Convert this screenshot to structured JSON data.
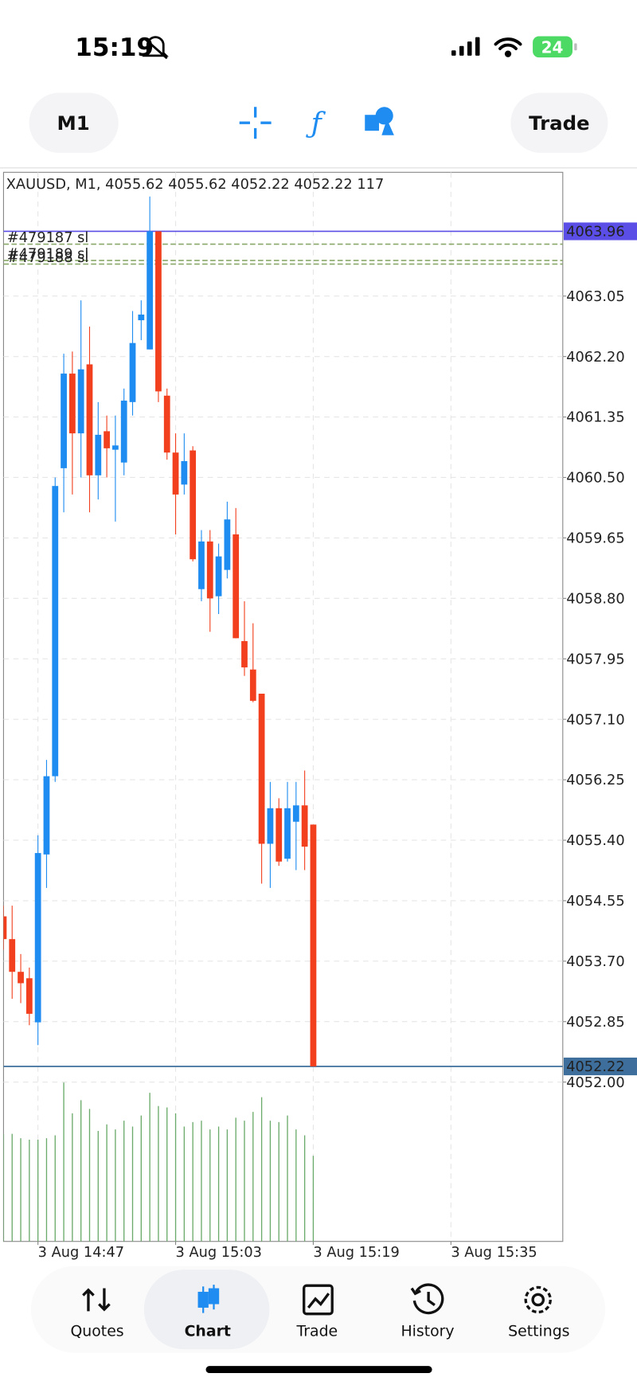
{
  "status_bar": {
    "time": "15:19",
    "battery": "24"
  },
  "toolbar": {
    "timeframe": "M1",
    "trade_button": "Trade"
  },
  "chart_data": {
    "type": "candlestick",
    "title": "XAUUSD, M1, 4055.62 4055.62 4052.22 4052.22 117",
    "x": [
      "3 Aug 14:43",
      "3 Aug 14:44",
      "3 Aug 14:45",
      "3 Aug 14:46",
      "3 Aug 14:47",
      "3 Aug 14:48",
      "3 Aug 14:49",
      "3 Aug 14:50",
      "3 Aug 14:51",
      "3 Aug 14:52",
      "3 Aug 14:53",
      "3 Aug 14:54",
      "3 Aug 14:55",
      "3 Aug 14:56",
      "3 Aug 14:57",
      "3 Aug 14:58",
      "3 Aug 14:59",
      "3 Aug 15:00",
      "3 Aug 15:01",
      "3 Aug 15:02",
      "3 Aug 15:03",
      "3 Aug 15:04",
      "3 Aug 15:05",
      "3 Aug 15:06",
      "3 Aug 15:07",
      "3 Aug 15:08",
      "3 Aug 15:09",
      "3 Aug 15:10",
      "3 Aug 15:11",
      "3 Aug 15:12",
      "3 Aug 15:13",
      "3 Aug 15:14",
      "3 Aug 15:15",
      "3 Aug 15:16",
      "3 Aug 15:17",
      "3 Aug 15:18",
      "3 Aug 15:19"
    ],
    "open": [
      4054.33,
      4054.01,
      4053.55,
      4053.46,
      4052.84,
      4055.2,
      4056.3,
      4060.63,
      4061.96,
      4061.12,
      4062.09,
      4060.53,
      4061.15,
      4060.89,
      4060.71,
      4061.56,
      4062.71,
      4062.3,
      4063.96,
      4061.65,
      4060.85,
      4060.4,
      4060.88,
      4058.93,
      4059.6,
      4058.83,
      4059.2,
      4059.7,
      4058.2,
      4057.8,
      4057.46,
      4055.35,
      4055.85,
      4055.14,
      4055.66,
      4055.89,
      4055.62
    ],
    "high": [
      4054.48,
      4054.48,
      4053.8,
      4053.61,
      4055.47,
      4056.53,
      4060.5,
      4062.24,
      4062.27,
      4062.99,
      4062.62,
      4061.56,
      4061.37,
      4061.37,
      4061.75,
      4062.84,
      4062.99,
      4064.45,
      4063.96,
      4061.75,
      4061.12,
      4061.12,
      4060.94,
      4059.76,
      4059.76,
      4059.57,
      4060.16,
      4060.07,
      4058.76,
      4058.45,
      4057.46,
      4056.22,
      4055.99,
      4056.22,
      4056.22,
      4056.38,
      4055.62
    ],
    "low": [
      4053.86,
      4053.17,
      4053.11,
      4052.8,
      4052.52,
      4054.73,
      4056.22,
      4060.01,
      4060.26,
      4060.5,
      4060.01,
      4060.19,
      4060.5,
      4059.88,
      4060.53,
      4061.37,
      4062.43,
      4062.3,
      4061.56,
      4060.75,
      4059.7,
      4060.26,
      4059.32,
      4058.76,
      4058.33,
      4058.58,
      4059.08,
      4058.24,
      4057.71,
      4057.34,
      4054.79,
      4054.73,
      4055.04,
      4055.1,
      4054.98,
      4054.98,
      4052.22
    ],
    "close": [
      4054.01,
      4053.55,
      4053.39,
      4052.96,
      4055.22,
      4056.3,
      4060.38,
      4061.96,
      4061.12,
      4062.02,
      4060.53,
      4061.1,
      4060.91,
      4060.95,
      4061.58,
      4062.39,
      4062.79,
      4063.96,
      4061.71,
      4060.85,
      4060.26,
      4060.73,
      4059.35,
      4059.6,
      4058.8,
      4059.39,
      4059.91,
      4058.24,
      4057.83,
      4057.36,
      4055.35,
      4055.85,
      4055.1,
      4055.85,
      4055.89,
      4055.31,
      4052.22
    ],
    "volume": [
      147,
      147,
      141,
      139,
      139,
      141,
      145,
      217,
      175,
      193,
      181,
      151,
      160,
      153,
      165,
      157,
      172,
      203,
      185,
      183,
      175,
      157,
      163,
      165,
      153,
      157,
      153,
      169,
      165,
      177,
      197,
      165,
      163,
      172,
      153,
      145,
      117
    ],
    "up_color": "#1e8cf0",
    "down_color": "#f2401e",
    "volume_color": "#6aaa6a",
    "xlim": [
      "3 Aug 14:43",
      "3 Aug 15:48"
    ],
    "xticks": [
      "3 Aug 14:47",
      "3 Aug 15:03",
      "3 Aug 15:19",
      "3 Aug 15:35"
    ],
    "ylim": [
      4049.76,
      4064.79
    ],
    "yticks": [
      4063.05,
      {
        "value": 4062.2,
        "label": "4062.20"
      },
      4061.35,
      {
        "value": 4060.5,
        "label": "4060.50"
      },
      4059.65,
      {
        "value": 4058.8,
        "label": "4058.80"
      },
      4057.95,
      {
        "value": 4057.1,
        "label": "4057.10"
      },
      4056.25,
      {
        "value": 4055.4,
        "label": "4055.40"
      },
      4054.55,
      {
        "value": 4053.7,
        "label": "4053.70"
      },
      4052.85,
      {
        "value": 4052,
        "label": "4052.00"
      }
    ],
    "volume_ylim": [
      0,
      233
    ],
    "grid": true,
    "price_lines": [
      {
        "value": 4063.96,
        "color": "#5b4ee6"
      },
      {
        "value": 4052.22,
        "color": "#3d6e9c"
      }
    ],
    "orders": [
      {
        "label": "#479187 sl",
        "value": 4063.78,
        "color": "#8aa86a"
      },
      {
        "label": "#479189 sl",
        "value": 4063.55,
        "color": "#8aa86a"
      },
      {
        "label": "#479188 sl",
        "value": 4063.5,
        "color": "#8aa86a"
      }
    ]
  },
  "tab_bar": {
    "tabs": [
      "Quotes",
      "Chart",
      "Trade",
      "History",
      "Settings"
    ],
    "active": "Chart"
  }
}
